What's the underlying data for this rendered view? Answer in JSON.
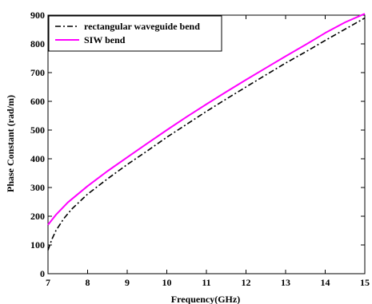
{
  "chart_data": {
    "type": "line",
    "title": "",
    "xlabel": "Frequency(GHz)",
    "ylabel": "Phase Constant (rad/m)",
    "xlim": [
      7,
      15
    ],
    "ylim": [
      0,
      900
    ],
    "xticks": [
      7,
      8,
      9,
      10,
      11,
      12,
      13,
      14,
      15
    ],
    "yticks": [
      0,
      100,
      200,
      300,
      400,
      500,
      600,
      700,
      800,
      900
    ],
    "grid": false,
    "legend_position": "top-left",
    "series": [
      {
        "name": "rectangular waveguide bend",
        "color": "#000000",
        "style": "dash-dot",
        "x": [
          7.0,
          7.1,
          7.2,
          7.4,
          7.6,
          8.0,
          8.5,
          9.0,
          9.5,
          10.0,
          10.5,
          11.0,
          11.5,
          12.0,
          12.5,
          13.0,
          13.5,
          14.0,
          14.5,
          15.0
        ],
        "y": [
          82,
          120,
          150,
          192,
          225,
          277,
          330,
          380,
          427,
          475,
          520,
          565,
          608,
          650,
          692,
          733,
          772,
          812,
          851,
          890
        ]
      },
      {
        "name": "SIW bend",
        "color": "#ff00ff",
        "style": "solid",
        "x": [
          7.0,
          7.2,
          7.5,
          8.0,
          8.5,
          9.0,
          9.5,
          10.0,
          10.5,
          11.0,
          11.5,
          12.0,
          12.5,
          13.0,
          13.5,
          14.0,
          14.5,
          15.0
        ],
        "y": [
          170,
          205,
          248,
          305,
          357,
          405,
          453,
          500,
          546,
          590,
          633,
          675,
          716,
          757,
          797,
          838,
          875,
          905
        ]
      }
    ]
  }
}
